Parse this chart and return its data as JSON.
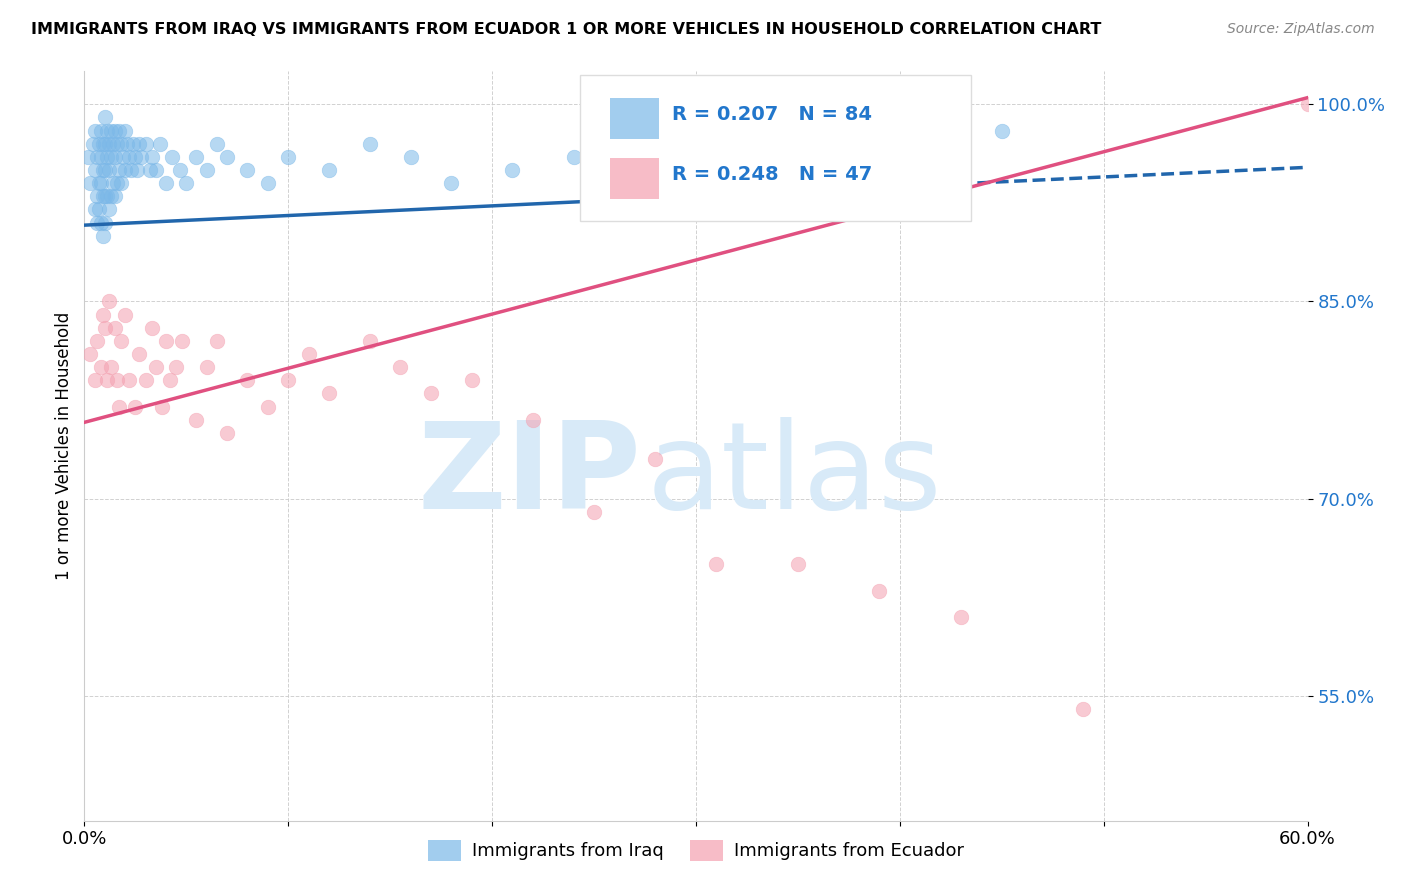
{
  "title": "IMMIGRANTS FROM IRAQ VS IMMIGRANTS FROM ECUADOR 1 OR MORE VEHICLES IN HOUSEHOLD CORRELATION CHART",
  "source": "Source: ZipAtlas.com",
  "ylabel": "1 or more Vehicles in Household",
  "xlim": [
    0.0,
    0.6
  ],
  "ylim": [
    0.455,
    1.025
  ],
  "yticks": [
    0.55,
    0.7,
    0.85,
    1.0
  ],
  "ytick_labels": [
    "55.0%",
    "70.0%",
    "85.0%",
    "100.0%"
  ],
  "xticks": [
    0.0,
    0.1,
    0.2,
    0.3,
    0.4,
    0.5,
    0.6
  ],
  "xtick_labels": [
    "0.0%",
    "",
    "",
    "",
    "",
    "",
    "60.0%"
  ],
  "iraq_color": "#7bb8e8",
  "ecuador_color": "#f4a0b0",
  "iraq_line_color": "#2166ac",
  "ecuador_line_color": "#e05080",
  "R_iraq": 0.207,
  "N_iraq": 84,
  "R_ecuador": 0.248,
  "N_ecuador": 47,
  "watermark_zip": "ZIP",
  "watermark_atlas": "atlas",
  "watermark_color": "#d8eaf8",
  "iraq_line_x0": 0.0,
  "iraq_line_x1": 0.6,
  "iraq_line_y0": 0.908,
  "iraq_line_y1": 0.952,
  "iraq_line_solid_end": 0.42,
  "ecuador_line_x0": 0.0,
  "ecuador_line_x1": 0.6,
  "ecuador_line_y0": 0.758,
  "ecuador_line_y1": 1.005,
  "iraq_x": [
    0.002,
    0.003,
    0.004,
    0.005,
    0.005,
    0.005,
    0.006,
    0.006,
    0.006,
    0.007,
    0.007,
    0.007,
    0.008,
    0.008,
    0.008,
    0.008,
    0.009,
    0.009,
    0.009,
    0.009,
    0.01,
    0.01,
    0.01,
    0.01,
    0.01,
    0.011,
    0.011,
    0.011,
    0.012,
    0.012,
    0.012,
    0.013,
    0.013,
    0.013,
    0.014,
    0.014,
    0.015,
    0.015,
    0.015,
    0.016,
    0.016,
    0.017,
    0.017,
    0.018,
    0.018,
    0.019,
    0.02,
    0.02,
    0.021,
    0.022,
    0.023,
    0.024,
    0.025,
    0.026,
    0.027,
    0.028,
    0.03,
    0.032,
    0.033,
    0.035,
    0.037,
    0.04,
    0.043,
    0.047,
    0.05,
    0.055,
    0.06,
    0.065,
    0.07,
    0.08,
    0.09,
    0.1,
    0.12,
    0.14,
    0.16,
    0.18,
    0.21,
    0.24,
    0.28,
    0.32,
    0.36,
    0.4,
    0.43,
    0.45
  ],
  "iraq_y": [
    0.96,
    0.94,
    0.97,
    0.95,
    0.92,
    0.98,
    0.96,
    0.93,
    0.91,
    0.97,
    0.94,
    0.92,
    0.98,
    0.96,
    0.94,
    0.91,
    0.97,
    0.95,
    0.93,
    0.9,
    0.99,
    0.97,
    0.95,
    0.93,
    0.91,
    0.98,
    0.96,
    0.93,
    0.97,
    0.95,
    0.92,
    0.98,
    0.96,
    0.93,
    0.97,
    0.94,
    0.98,
    0.96,
    0.93,
    0.97,
    0.94,
    0.98,
    0.95,
    0.97,
    0.94,
    0.96,
    0.98,
    0.95,
    0.97,
    0.96,
    0.95,
    0.97,
    0.96,
    0.95,
    0.97,
    0.96,
    0.97,
    0.95,
    0.96,
    0.95,
    0.97,
    0.94,
    0.96,
    0.95,
    0.94,
    0.96,
    0.95,
    0.97,
    0.96,
    0.95,
    0.94,
    0.96,
    0.95,
    0.97,
    0.96,
    0.94,
    0.95,
    0.96,
    0.97,
    0.95,
    0.96,
    0.94,
    0.96,
    0.98
  ],
  "ecuador_x": [
    0.003,
    0.005,
    0.006,
    0.008,
    0.009,
    0.01,
    0.011,
    0.012,
    0.013,
    0.015,
    0.016,
    0.017,
    0.018,
    0.02,
    0.022,
    0.025,
    0.027,
    0.03,
    0.033,
    0.035,
    0.038,
    0.04,
    0.042,
    0.045,
    0.048,
    0.055,
    0.06,
    0.065,
    0.07,
    0.08,
    0.09,
    0.1,
    0.11,
    0.12,
    0.14,
    0.155,
    0.17,
    0.19,
    0.22,
    0.25,
    0.28,
    0.31,
    0.35,
    0.39,
    0.43,
    0.49,
    0.6
  ],
  "ecuador_y": [
    0.81,
    0.79,
    0.82,
    0.8,
    0.84,
    0.83,
    0.79,
    0.85,
    0.8,
    0.83,
    0.79,
    0.77,
    0.82,
    0.84,
    0.79,
    0.77,
    0.81,
    0.79,
    0.83,
    0.8,
    0.77,
    0.82,
    0.79,
    0.8,
    0.82,
    0.76,
    0.8,
    0.82,
    0.75,
    0.79,
    0.77,
    0.79,
    0.81,
    0.78,
    0.82,
    0.8,
    0.78,
    0.79,
    0.76,
    0.69,
    0.73,
    0.65,
    0.65,
    0.63,
    0.61,
    0.54,
    1.0
  ]
}
